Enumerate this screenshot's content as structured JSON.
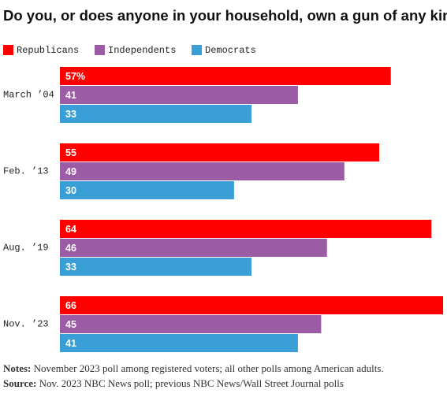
{
  "chart_data": {
    "type": "bar",
    "orientation": "horizontal",
    "title": "Do you, or does anyone in your household, own a gun of any kind?",
    "categories": [
      "March ’04",
      "Feb. ’13",
      "Aug. ’19",
      "Nov. ’23"
    ],
    "series": [
      {
        "name": "Republicans",
        "color": "#ff0000",
        "values": [
          57,
          55,
          64,
          66
        ],
        "value_labels": [
          "57%",
          "55",
          "64",
          "66"
        ]
      },
      {
        "name": "Independents",
        "color": "#9b5ba5",
        "values": [
          41,
          49,
          46,
          45
        ]
      },
      {
        "name": "Democrats",
        "color": "#3a9fd6",
        "values": [
          33,
          30,
          33,
          41
        ]
      }
    ],
    "xlim": [
      0,
      66
    ],
    "notes": {
      "label": "Notes:",
      "text": "November 2023 poll among registered voters; all other polls among American adults."
    },
    "source": {
      "label": "Source:",
      "text": "Nov. 2023 NBC News poll; previous NBC News/Wall Street Journal polls"
    }
  }
}
